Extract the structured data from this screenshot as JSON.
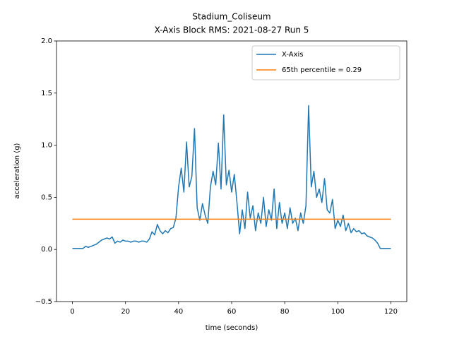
{
  "chart_data": {
    "type": "line",
    "title": "Stadium_Coliseum",
    "subtitle": "X-Axis Block RMS: 2021-08-27 Run 5",
    "xlabel": "time (seconds)",
    "ylabel": "acceleration (g)",
    "x": [
      0,
      1,
      2,
      3,
      4,
      5,
      6,
      7,
      8,
      9,
      10,
      11,
      12,
      13,
      14,
      15,
      16,
      17,
      18,
      19,
      20,
      21,
      22,
      23,
      24,
      25,
      26,
      27,
      28,
      29,
      30,
      31,
      32,
      33,
      34,
      35,
      36,
      37,
      38,
      39,
      40,
      41,
      42,
      43,
      44,
      45,
      46,
      47,
      48,
      49,
      50,
      51,
      52,
      53,
      54,
      55,
      56,
      57,
      58,
      59,
      60,
      61,
      62,
      63,
      64,
      65,
      66,
      67,
      68,
      69,
      70,
      71,
      72,
      73,
      74,
      75,
      76,
      77,
      78,
      79,
      80,
      81,
      82,
      83,
      84,
      85,
      86,
      87,
      88,
      89,
      90,
      91,
      92,
      93,
      94,
      95,
      96,
      97,
      98,
      99,
      100,
      101,
      102,
      103,
      104,
      105,
      106,
      107,
      108,
      109,
      110,
      111,
      112,
      113,
      114,
      115,
      116,
      117,
      118,
      119,
      120
    ],
    "series": [
      {
        "name": "X-Axis",
        "color": "#1f77b4",
        "values": [
          0.01,
          0.01,
          0.01,
          0.01,
          0.01,
          0.03,
          0.02,
          0.03,
          0.04,
          0.05,
          0.07,
          0.09,
          0.1,
          0.11,
          0.1,
          0.12,
          0.06,
          0.08,
          0.07,
          0.09,
          0.08,
          0.08,
          0.07,
          0.08,
          0.08,
          0.07,
          0.08,
          0.08,
          0.07,
          0.1,
          0.17,
          0.14,
          0.24,
          0.18,
          0.15,
          0.18,
          0.16,
          0.2,
          0.21,
          0.3,
          0.6,
          0.78,
          0.55,
          1.03,
          0.6,
          0.7,
          1.16,
          0.4,
          0.28,
          0.44,
          0.33,
          0.25,
          0.6,
          0.75,
          0.62,
          1.02,
          0.58,
          1.29,
          0.62,
          0.76,
          0.55,
          0.72,
          0.45,
          0.15,
          0.38,
          0.2,
          0.55,
          0.3,
          0.42,
          0.18,
          0.35,
          0.25,
          0.5,
          0.22,
          0.38,
          0.28,
          0.58,
          0.2,
          0.45,
          0.25,
          0.35,
          0.2,
          0.4,
          0.25,
          0.3,
          0.18,
          0.35,
          0.25,
          0.42,
          1.38,
          0.6,
          0.75,
          0.5,
          0.58,
          0.45,
          0.68,
          0.38,
          0.35,
          0.48,
          0.2,
          0.28,
          0.22,
          0.33,
          0.18,
          0.25,
          0.16,
          0.2,
          0.17,
          0.18,
          0.15,
          0.16,
          0.13,
          0.12,
          0.11,
          0.09,
          0.06,
          0.01,
          0.01,
          0.01,
          0.01,
          0.01
        ]
      },
      {
        "name": "65th percentile = 0.29",
        "color": "#ff7f0e",
        "x": [
          0,
          120
        ],
        "values": [
          0.29,
          0.29
        ]
      }
    ],
    "xlim": [
      -6,
      126
    ],
    "ylim": [
      -0.5,
      2.0
    ],
    "xticks": [
      0,
      20,
      40,
      60,
      80,
      100,
      120
    ],
    "yticks": [
      {
        "value": -0.5,
        "label": "−0.5"
      },
      {
        "value": 0,
        "label": "0.0"
      },
      0.5,
      {
        "value": 1,
        "label": "1.0"
      },
      1.5,
      {
        "value": 2,
        "label": "2.0"
      }
    ],
    "legend": "upper right",
    "grid": false
  }
}
